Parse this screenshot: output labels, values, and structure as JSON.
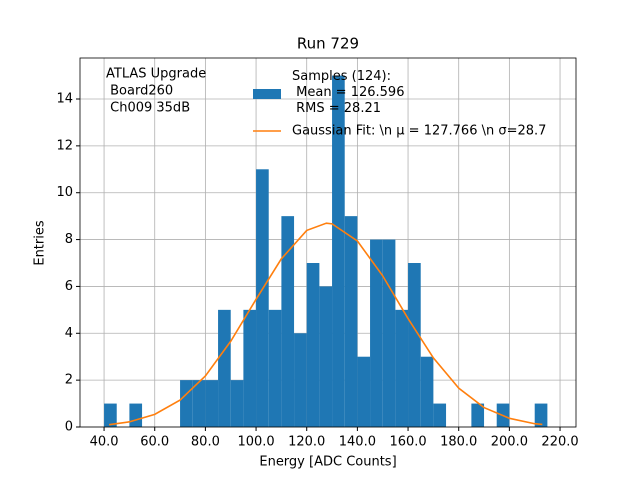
{
  "chart_data": {
    "type": "histogram",
    "title": "Run 729",
    "xlabel": "Energy [ADC Counts]",
    "ylabel": "Entries",
    "annotation": [
      "ATLAS Upgrade",
      " Board260",
      " Ch009 35dB"
    ],
    "xlim": [
      30.5,
      226.3
    ],
    "ylim": [
      0,
      15.75
    ],
    "xticks": [
      {
        "value": 40,
        "label": "40.0"
      },
      {
        "value": 60,
        "label": "60.0"
      },
      {
        "value": 80,
        "label": "80.0"
      },
      {
        "value": 100,
        "label": "100.0"
      },
      {
        "value": 120,
        "label": "120.0"
      },
      {
        "value": 140,
        "label": "140.0"
      },
      {
        "value": 160,
        "label": "160.0"
      },
      {
        "value": 180,
        "label": "180.0"
      },
      {
        "value": 200,
        "label": "200.0"
      },
      {
        "value": 220,
        "label": "220.0"
      }
    ],
    "yticks": [
      0,
      2,
      4,
      6,
      8,
      10,
      12,
      14
    ],
    "grid": true,
    "series": [
      {
        "name": "Samples (124):\n Mean = 126.596\n RMS = 28.21",
        "type": "histogram",
        "color": "#1f77b4",
        "bins": [
          40,
          45,
          50,
          55,
          60,
          65,
          70,
          75,
          80,
          85,
          90,
          95,
          100,
          105,
          110,
          115,
          120,
          125,
          130,
          135,
          140,
          145,
          150,
          155,
          160,
          165,
          170,
          175,
          180,
          185,
          190,
          195,
          200,
          205,
          210,
          215
        ],
        "values": [
          1,
          0,
          1,
          0,
          0,
          0,
          2,
          2,
          2,
          5,
          2,
          5,
          11,
          5,
          9,
          4,
          7,
          6,
          15,
          9,
          3,
          8,
          8,
          5,
          7,
          3,
          1,
          0,
          0,
          1,
          0,
          1,
          0,
          0,
          1
        ]
      },
      {
        "name": "Gaussian Fit: \\n μ = 127.766 \\n σ=28.7",
        "type": "line",
        "color": "#ff7f0e",
        "x": [
          42,
          50,
          60,
          70,
          80,
          90,
          100,
          110,
          120,
          127.766,
          130,
          140,
          150,
          160,
          170,
          180,
          190,
          200,
          210,
          213
        ],
        "values": [
          0.1,
          0.22,
          0.54,
          1.15,
          2.18,
          3.66,
          5.45,
          7.18,
          8.39,
          8.7,
          8.67,
          7.94,
          6.45,
          4.63,
          2.95,
          1.66,
          0.83,
          0.37,
          0.14,
          0.11
        ]
      }
    ]
  }
}
